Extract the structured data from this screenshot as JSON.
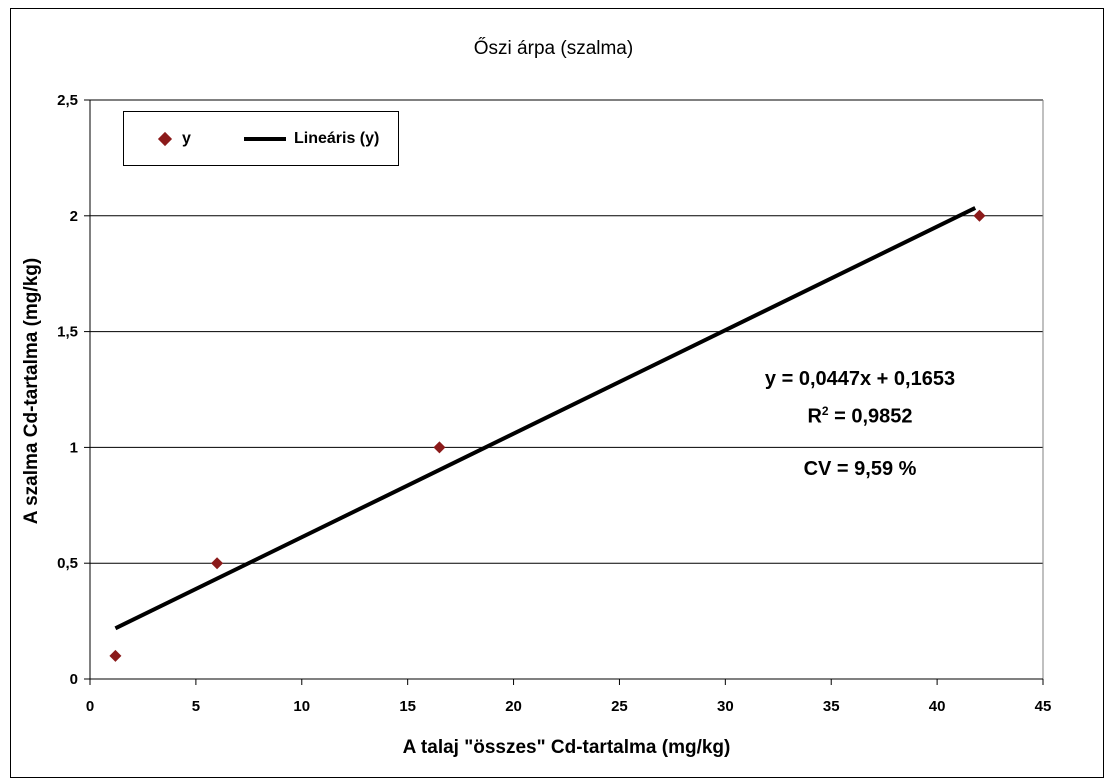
{
  "chart_data": {
    "type": "scatter",
    "title": "Őszi árpa (szalma)",
    "xlabel": "A talaj \"összes\" Cd-tartalma (mg/kg)",
    "ylabel": "A szalma Cd-tartalma (mg/kg)",
    "xlim": [
      0,
      45
    ],
    "ylim": [
      0,
      2.5
    ],
    "xticks": [
      0,
      5,
      10,
      15,
      20,
      25,
      30,
      35,
      40,
      45
    ],
    "yticks": [
      0,
      0.5,
      1,
      1.5,
      2,
      2.5
    ],
    "xtick_labels": [
      "0",
      "5",
      "10",
      "15",
      "20",
      "25",
      "30",
      "35",
      "40",
      "45"
    ],
    "ytick_labels": [
      "0",
      "0,5",
      "1",
      "1,5",
      "2",
      "2,5"
    ],
    "grid": "horizontal",
    "legend_position": "top-left",
    "series": [
      {
        "name": "y",
        "marker": "diamond",
        "color": "#8b1a1a",
        "x": [
          1.2,
          6,
          16.5,
          42
        ],
        "y": [
          0.1,
          0.5,
          1,
          2
        ]
      }
    ],
    "trendline": {
      "name": "Lineáris (y)",
      "type": "linear",
      "slope": 0.0447,
      "intercept": 0.1653,
      "x_range": [
        1.2,
        41.8
      ],
      "color": "#000000"
    },
    "annotations": {
      "equation": "y = 0,0447x + 0,1653",
      "r2_prefix": "R",
      "r2_sup": "2",
      "r2_value": " = 0,9852",
      "cv": "CV = 9,59 %"
    }
  }
}
